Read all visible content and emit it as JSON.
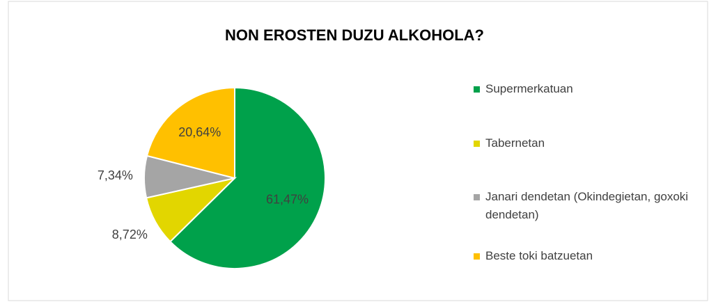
{
  "chart_data": {
    "type": "pie",
    "title": "NON EROSTEN DUZU ALKOHOLA?",
    "categories": [
      "Supermerkatuan",
      "Tabernetan",
      "Janari dendetan (Okindegietan, goxoki dendetan)",
      "Beste toki batzuetan"
    ],
    "values": [
      61.47,
      8.72,
      7.34,
      20.64
    ],
    "value_labels": [
      "61,47%",
      "8,72%",
      "7,34%",
      "20,64%"
    ],
    "colors": [
      "#00a14b",
      "#e2d600",
      "#a5a5a5",
      "#ffc000"
    ],
    "legend": "right"
  }
}
